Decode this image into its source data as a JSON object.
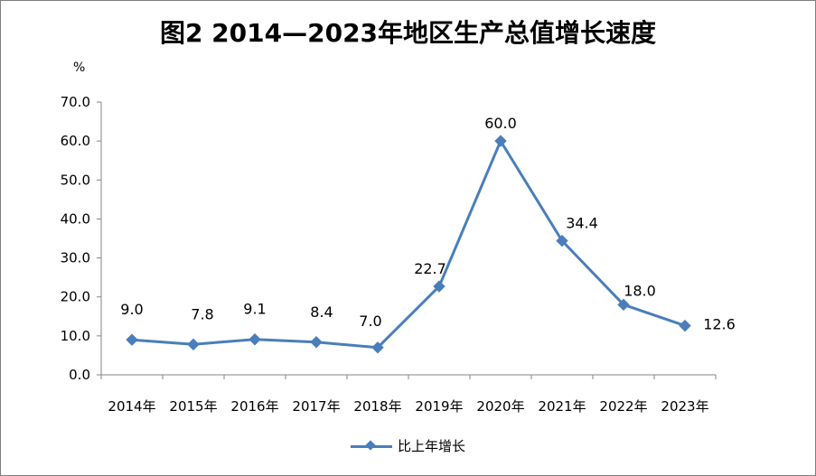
{
  "chart_data": {
    "type": "line",
    "title": "图2  2014—2023年地区生产总值增长速度",
    "ylabel": "%",
    "xlabel": "",
    "categories": [
      "2014年",
      "2015年",
      "2016年",
      "2017年",
      "2018年",
      "2019年",
      "2020年",
      "2021年",
      "2022年",
      "2023年"
    ],
    "series": [
      {
        "name": "比上年增长",
        "values": [
          9.0,
          7.8,
          9.1,
          8.4,
          7.0,
          22.7,
          60.0,
          34.4,
          18.0,
          12.6
        ],
        "labels": [
          "9.0",
          "7.8",
          "9.1",
          "8.4",
          "7.0",
          "22.7",
          "60.0",
          "34.4",
          "18.0",
          "12.6"
        ],
        "color": "#4a7ebb",
        "marker": "diamond"
      }
    ],
    "ylim": [
      0,
      70
    ],
    "yticks": [
      "0.0",
      "10.0",
      "20.0",
      "30.0",
      "40.0",
      "50.0",
      "60.0",
      "70.0"
    ],
    "grid": false,
    "legend_position": "bottom"
  }
}
